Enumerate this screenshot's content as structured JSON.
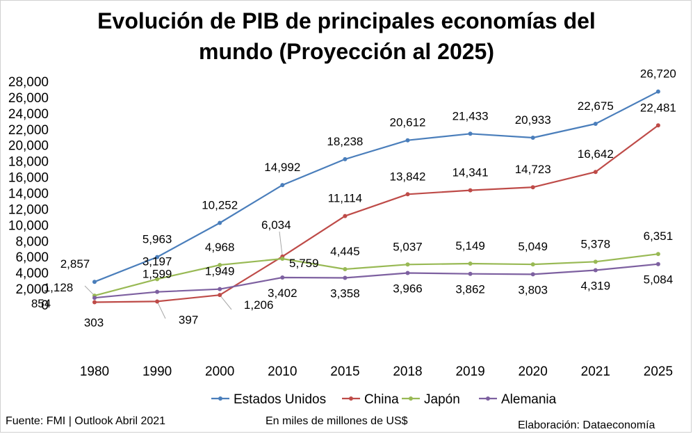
{
  "chart_data": {
    "type": "line",
    "title": [
      "Evolución de PIB de principales economías del",
      "mundo (Proyección al 2025)"
    ],
    "x": [
      "1980",
      "1990",
      "2000",
      "2010",
      "2015",
      "2018",
      "2019",
      "2020",
      "2021",
      "2025"
    ],
    "ylim": [
      0,
      28000
    ],
    "yticks": [
      "0",
      "2,000",
      "4,000",
      "6,000",
      "8,000",
      "10,000",
      "12,000",
      "14,000",
      "16,000",
      "18,000",
      "20,000",
      "22,000",
      "24,000",
      "26,000",
      "28,000"
    ],
    "grid": false,
    "legend_position": "bottom",
    "series": [
      {
        "name": "Estados Unidos",
        "color": "#4a7ebb",
        "values": [
          2857,
          5963,
          10252,
          14992,
          18238,
          20612,
          21433,
          20933,
          22675,
          26720
        ],
        "labels": [
          "2,857",
          "5,963",
          "10,252",
          "14,992",
          "18,238",
          "20,612",
          "21,433",
          "20,933",
          "22,675",
          "26,720"
        ]
      },
      {
        "name": "China",
        "color": "#be4b48",
        "values": [
          303,
          397,
          1206,
          6034,
          11114,
          13842,
          14341,
          14723,
          16642,
          22481
        ],
        "labels": [
          "303",
          "397",
          "1,206",
          "6,034",
          "11,114",
          "13,842",
          "14,341",
          "14,723",
          "16,642",
          "22,481"
        ]
      },
      {
        "name": "Japón",
        "color": "#98b954",
        "values": [
          1128,
          3197,
          4968,
          5759,
          4445,
          5037,
          5149,
          5049,
          5378,
          6351
        ],
        "labels": [
          "1,128",
          "3,197",
          "4,968",
          "5,759",
          "4,445",
          "5,037",
          "5,149",
          "5,049",
          "5,378",
          "6,351"
        ]
      },
      {
        "name": "Alemania",
        "color": "#7d60a0",
        "values": [
          854,
          1599,
          1949,
          3402,
          3358,
          3966,
          3862,
          3803,
          4319,
          5084
        ],
        "labels": [
          "854",
          "1,599",
          "1,949",
          "3,402",
          "3,358",
          "3,966",
          "3,862",
          "3,803",
          "4,319",
          "5,084"
        ]
      }
    ]
  },
  "footer": {
    "source": "Fuente: FMI | Outlook Abril 2021",
    "units": "En miles de millones de US$",
    "credit": "Elaboración: Dataeconomía"
  }
}
